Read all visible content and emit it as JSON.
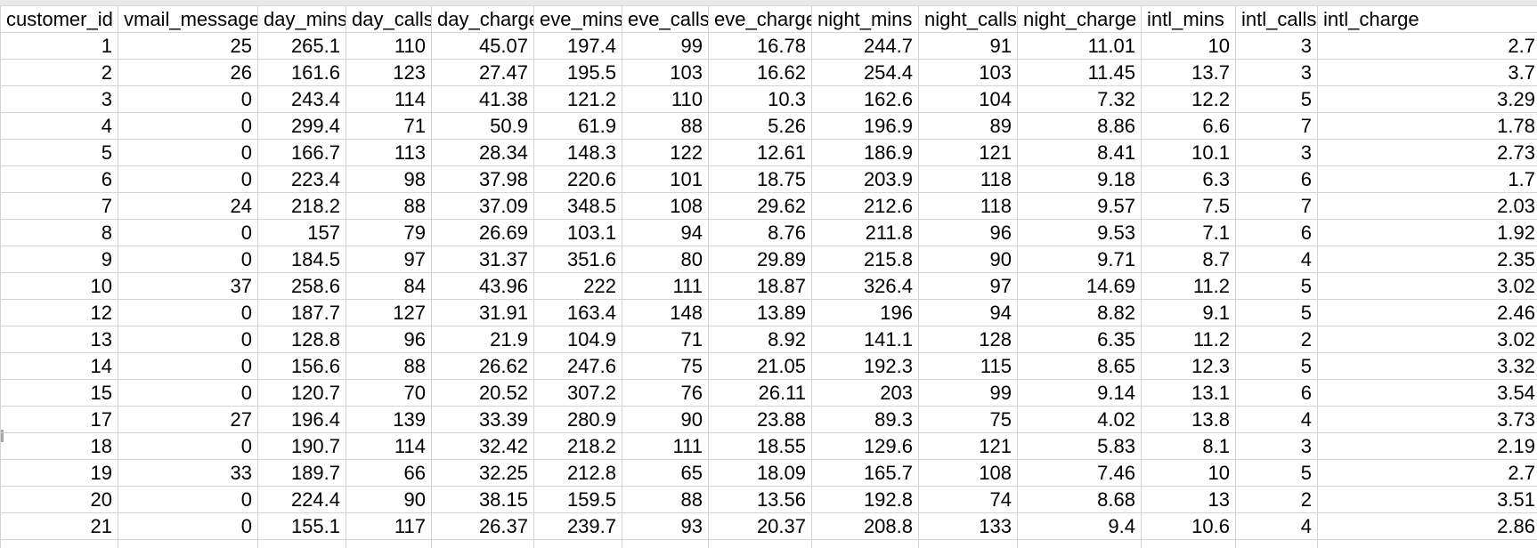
{
  "columns": [
    "customer_id",
    "vmail_messages",
    "day_mins",
    "day_calls",
    "day_charge",
    "eve_mins",
    "eve_calls",
    "eve_charge",
    "night_mins",
    "night_calls",
    "night_charge",
    "intl_mins",
    "intl_calls",
    "intl_charge"
  ],
  "rows": [
    [
      "1",
      "25",
      "265.1",
      "110",
      "45.07",
      "197.4",
      "99",
      "16.78",
      "244.7",
      "91",
      "11.01",
      "10",
      "3",
      "2.7"
    ],
    [
      "2",
      "26",
      "161.6",
      "123",
      "27.47",
      "195.5",
      "103",
      "16.62",
      "254.4",
      "103",
      "11.45",
      "13.7",
      "3",
      "3.7"
    ],
    [
      "3",
      "0",
      "243.4",
      "114",
      "41.38",
      "121.2",
      "110",
      "10.3",
      "162.6",
      "104",
      "7.32",
      "12.2",
      "5",
      "3.29"
    ],
    [
      "4",
      "0",
      "299.4",
      "71",
      "50.9",
      "61.9",
      "88",
      "5.26",
      "196.9",
      "89",
      "8.86",
      "6.6",
      "7",
      "1.78"
    ],
    [
      "5",
      "0",
      "166.7",
      "113",
      "28.34",
      "148.3",
      "122",
      "12.61",
      "186.9",
      "121",
      "8.41",
      "10.1",
      "3",
      "2.73"
    ],
    [
      "6",
      "0",
      "223.4",
      "98",
      "37.98",
      "220.6",
      "101",
      "18.75",
      "203.9",
      "118",
      "9.18",
      "6.3",
      "6",
      "1.7"
    ],
    [
      "7",
      "24",
      "218.2",
      "88",
      "37.09",
      "348.5",
      "108",
      "29.62",
      "212.6",
      "118",
      "9.57",
      "7.5",
      "7",
      "2.03"
    ],
    [
      "8",
      "0",
      "157",
      "79",
      "26.69",
      "103.1",
      "94",
      "8.76",
      "211.8",
      "96",
      "9.53",
      "7.1",
      "6",
      "1.92"
    ],
    [
      "9",
      "0",
      "184.5",
      "97",
      "31.37",
      "351.6",
      "80",
      "29.89",
      "215.8",
      "90",
      "9.71",
      "8.7",
      "4",
      "2.35"
    ],
    [
      "10",
      "37",
      "258.6",
      "84",
      "43.96",
      "222",
      "111",
      "18.87",
      "326.4",
      "97",
      "14.69",
      "11.2",
      "5",
      "3.02"
    ],
    [
      "12",
      "0",
      "187.7",
      "127",
      "31.91",
      "163.4",
      "148",
      "13.89",
      "196",
      "94",
      "8.82",
      "9.1",
      "5",
      "2.46"
    ],
    [
      "13",
      "0",
      "128.8",
      "96",
      "21.9",
      "104.9",
      "71",
      "8.92",
      "141.1",
      "128",
      "6.35",
      "11.2",
      "2",
      "3.02"
    ],
    [
      "14",
      "0",
      "156.6",
      "88",
      "26.62",
      "247.6",
      "75",
      "21.05",
      "192.3",
      "115",
      "8.65",
      "12.3",
      "5",
      "3.32"
    ],
    [
      "15",
      "0",
      "120.7",
      "70",
      "20.52",
      "307.2",
      "76",
      "26.11",
      "203",
      "99",
      "9.14",
      "13.1",
      "6",
      "3.54"
    ],
    [
      "17",
      "27",
      "196.4",
      "139",
      "33.39",
      "280.9",
      "90",
      "23.88",
      "89.3",
      "75",
      "4.02",
      "13.8",
      "4",
      "3.73"
    ],
    [
      "18",
      "0",
      "190.7",
      "114",
      "32.42",
      "218.2",
      "111",
      "18.55",
      "129.6",
      "121",
      "5.83",
      "8.1",
      "3",
      "2.19"
    ],
    [
      "19",
      "33",
      "189.7",
      "66",
      "32.25",
      "212.8",
      "65",
      "18.09",
      "165.7",
      "108",
      "7.46",
      "10",
      "5",
      "2.7"
    ],
    [
      "20",
      "0",
      "224.4",
      "90",
      "38.15",
      "159.5",
      "88",
      "13.56",
      "192.8",
      "74",
      "8.68",
      "13",
      "2",
      "3.51"
    ],
    [
      "21",
      "0",
      "155.1",
      "117",
      "26.37",
      "239.7",
      "93",
      "20.37",
      "208.8",
      "133",
      "9.4",
      "10.6",
      "4",
      "2.86"
    ]
  ]
}
